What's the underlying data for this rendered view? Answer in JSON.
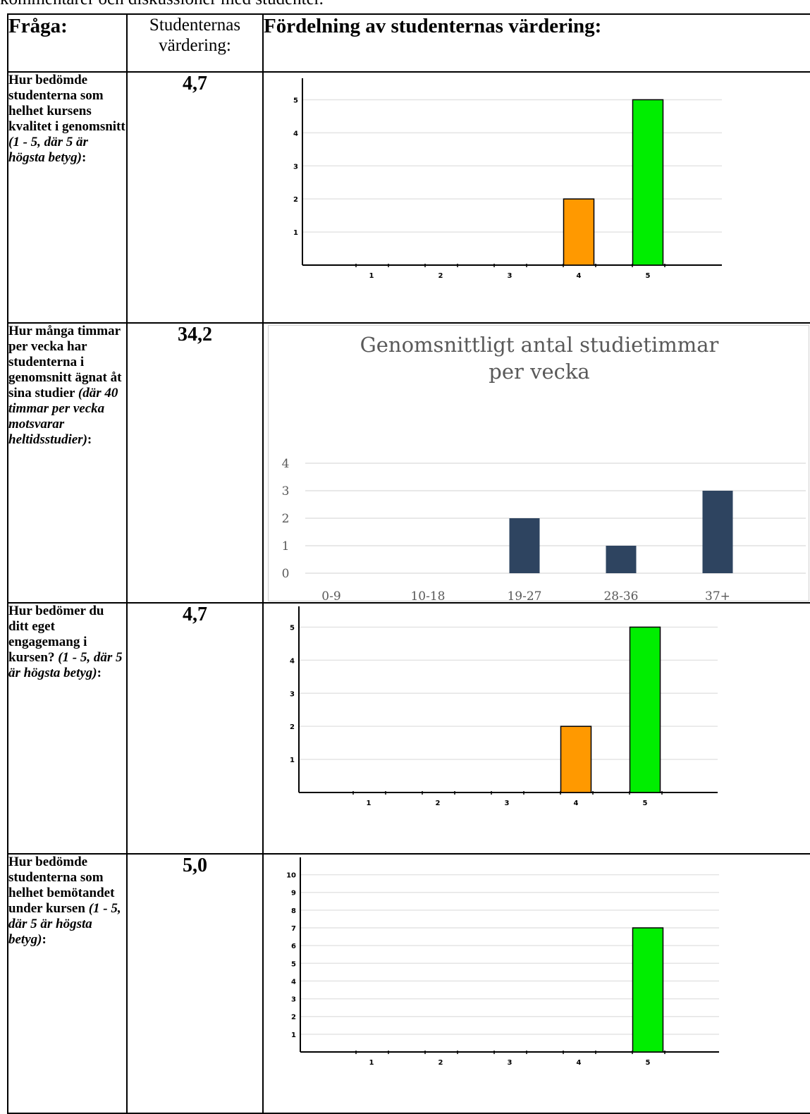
{
  "intro_text": "kommentarer och diskussioner med studenter.",
  "table": {
    "headers": [
      "Fråga:",
      "Studenternas värdering:",
      "Fördelning av studenternas värdering:"
    ],
    "rows": [
      {
        "question": "Hur bedömde studenterna som helhet kursens kvalitet i genomsnitt",
        "question_note": "(1 - 5, där 5 är högsta betyg)",
        "question_end": ":",
        "rating": "4,7"
      },
      {
        "question": "Hur många timmar per vecka har studenterna i genomsnitt ägnat åt sina studier",
        "question_note": "(där 40 timmar per vecka motsvarar heltidsstudier)",
        "question_end": ":",
        "rating": "34,2"
      },
      {
        "question": "Hur bedömer du ditt eget engagemang i kursen?",
        "question_note": "(1 - 5, där 5 är högsta betyg)",
        "question_end": ":",
        "rating": "4,7"
      },
      {
        "question": "Hur bedömde studenterna som helhet bemötandet under kursen",
        "question_note": "(1 - 5, där 5 är högsta betyg)",
        "question_end": ":",
        "rating": "5,0"
      }
    ]
  },
  "chart_data": [
    {
      "type": "bar",
      "categories": [
        "1",
        "2",
        "3",
        "4",
        "5"
      ],
      "values": [
        0,
        0,
        0,
        2,
        5
      ],
      "bar_colors": [
        "#ff9900",
        "#ff9900",
        "#ff9900",
        "#ff9900",
        "#00ee00"
      ],
      "yticks": [
        "1",
        "2",
        "3",
        "4",
        "5"
      ],
      "ylim": [
        0,
        5.5
      ],
      "grid": true,
      "title": ""
    },
    {
      "type": "bar",
      "title": "Genomsnittligt antal studietimmar per vecka",
      "title_lines": [
        "Genomsnittligt antal studietimmar",
        "per vecka"
      ],
      "categories": [
        "0-9",
        "10-18",
        "19-27",
        "28-36",
        "37+"
      ],
      "values": [
        0,
        0,
        2,
        1,
        3
      ],
      "bar_color": "#2e4460",
      "yticks": [
        "0",
        "1",
        "2",
        "3",
        "4"
      ],
      "ylim": [
        0,
        4
      ],
      "grid": true
    },
    {
      "type": "bar",
      "categories": [
        "1",
        "2",
        "3",
        "4",
        "5"
      ],
      "values": [
        0,
        0,
        0,
        2,
        5
      ],
      "bar_colors": [
        "#ff9900",
        "#ff9900",
        "#ff9900",
        "#ff9900",
        "#00ee00"
      ],
      "yticks": [
        "1",
        "2",
        "3",
        "4",
        "5"
      ],
      "ylim": [
        0,
        5.5
      ],
      "grid": true,
      "title": ""
    },
    {
      "type": "bar",
      "categories": [
        "1",
        "2",
        "3",
        "4",
        "5"
      ],
      "values": [
        0,
        0,
        0,
        0,
        7
      ],
      "bar_colors": [
        "#ff9900",
        "#ff9900",
        "#ff9900",
        "#ff9900",
        "#00ee00"
      ],
      "yticks": [
        "1",
        "2",
        "3",
        "4",
        "5",
        "6",
        "7",
        "8",
        "9",
        "10"
      ],
      "ylim": [
        0,
        10.5
      ],
      "grid": true,
      "title": ""
    }
  ]
}
